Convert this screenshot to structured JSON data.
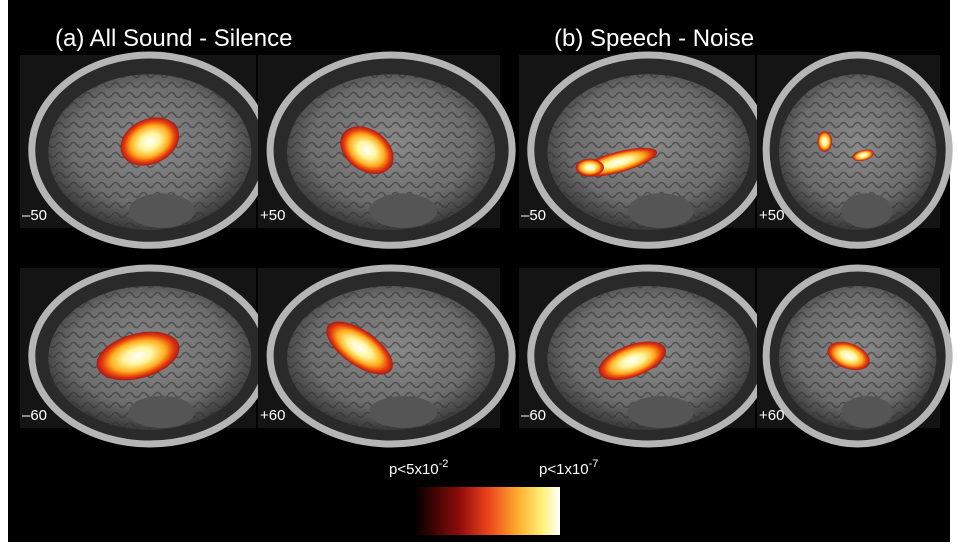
{
  "panels": [
    {
      "title": "(a) All Sound - Silence",
      "slices": [
        {
          "label": "–50"
        },
        {
          "label": "+50"
        },
        {
          "label": "–60"
        },
        {
          "label": "+60"
        }
      ]
    },
    {
      "title": "(b) Speech - Noise",
      "slices": [
        {
          "label": "–50"
        },
        {
          "label": "+50"
        },
        {
          "label": "–60"
        },
        {
          "label": "+60"
        }
      ]
    }
  ],
  "colorbar": {
    "low": {
      "base": "p<5x10",
      "exponent": "-2"
    },
    "high": {
      "base": "p<1x10",
      "exponent": "-7"
    }
  }
}
